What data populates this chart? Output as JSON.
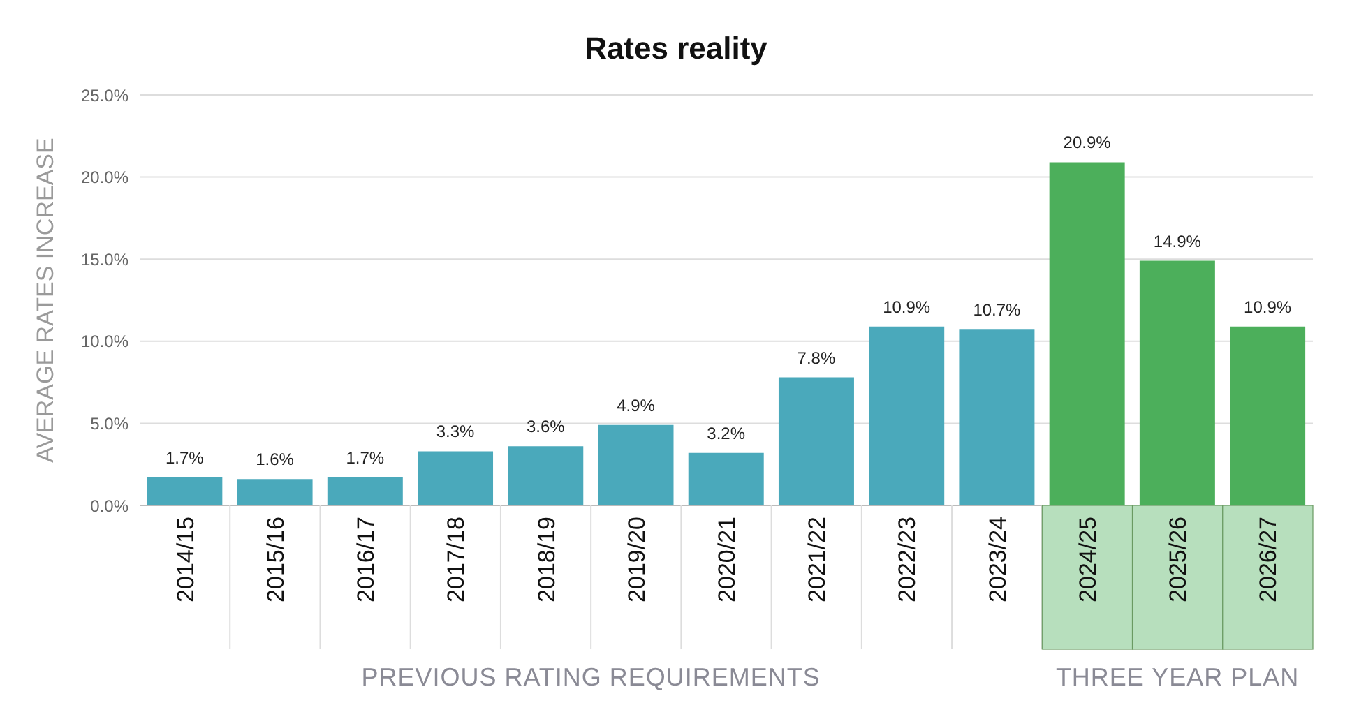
{
  "chart_data": {
    "type": "bar",
    "title": "Rates reality",
    "ylabel": "AVERAGE RATES INCREASE",
    "categories": [
      "2014/15",
      "2015/16",
      "2016/17",
      "2017/18",
      "2018/19",
      "2019/20",
      "2020/21",
      "2021/22",
      "2022/23",
      "2023/24",
      "2024/25",
      "2025/26",
      "2026/27"
    ],
    "values": [
      1.7,
      1.6,
      1.7,
      3.3,
      3.6,
      4.9,
      3.2,
      7.8,
      10.9,
      10.7,
      20.9,
      14.9,
      10.9
    ],
    "colors": [
      "#4aa9bb",
      "#4aa9bb",
      "#4aa9bb",
      "#4aa9bb",
      "#4aa9bb",
      "#4aa9bb",
      "#4aa9bb",
      "#4aa9bb",
      "#4aa9bb",
      "#4aa9bb",
      "#4caf5b",
      "#4caf5b",
      "#4caf5b"
    ],
    "value_labels": [
      "1.7%",
      "1.6%",
      "1.7%",
      "3.3%",
      "3.6%",
      "4.9%",
      "3.2%",
      "7.8%",
      "10.9%",
      "10.7%",
      "20.9%",
      "14.9%",
      "10.9%"
    ],
    "ylim": [
      0,
      25
    ],
    "yticks": [
      {
        "value": 0,
        "label": "0.0%"
      },
      {
        "value": 5,
        "label": "5.0%"
      },
      {
        "value": 10,
        "label": "10.0%"
      },
      {
        "value": 15,
        "label": "15.0%"
      },
      {
        "value": 20,
        "label": "20.0%"
      },
      {
        "value": 25,
        "label": "25.0%"
      }
    ],
    "grid": "y",
    "annotations": [
      "PREVIOUS RATING REQUIREMENTS",
      "THREE YEAR PLAN"
    ]
  }
}
